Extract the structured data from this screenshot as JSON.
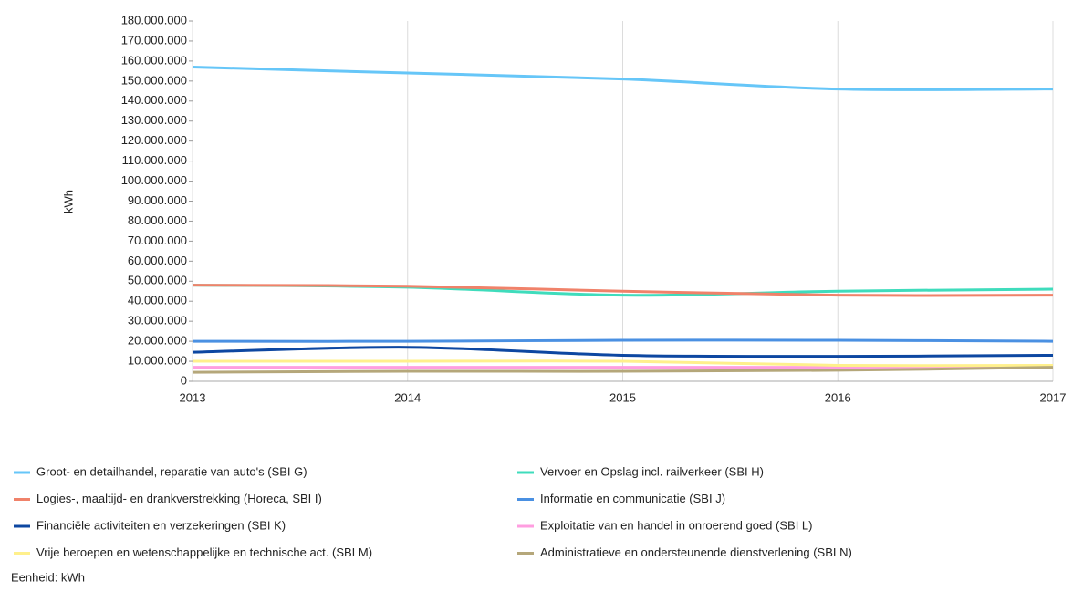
{
  "chart_data": {
    "type": "line",
    "y_label": "kWh",
    "footer": "Eenheid: kWh",
    "x": [
      2013,
      2014,
      2015,
      2016,
      2017
    ],
    "xlim": [
      2013,
      2017
    ],
    "xticks": [
      2013,
      2014,
      2015,
      2016,
      2017
    ],
    "ylim": [
      0,
      180000000
    ],
    "yticks": [
      0,
      {
        "value": 10000000,
        "label": "10.000.000"
      },
      {
        "value": 20000000,
        "label": "20.000.000"
      },
      {
        "value": 30000000,
        "label": "30.000.000"
      },
      {
        "value": 40000000,
        "label": "40.000.000"
      },
      {
        "value": 50000000,
        "label": "50.000.000"
      },
      {
        "value": 60000000,
        "label": "60.000.000"
      },
      {
        "value": 70000000,
        "label": "70.000.000"
      },
      {
        "value": 80000000,
        "label": "80.000.000"
      },
      {
        "value": 90000000,
        "label": "90.000.000"
      },
      {
        "value": 100000000,
        "label": "100.000.000"
      },
      {
        "value": 110000000,
        "label": "110.000.000"
      },
      {
        "value": 120000000,
        "label": "120.000.000"
      },
      {
        "value": 130000000,
        "label": "130.000.000"
      },
      {
        "value": 140000000,
        "label": "140.000.000"
      },
      {
        "value": 150000000,
        "label": "150.000.000"
      },
      {
        "value": 160000000,
        "label": "160.000.000"
      },
      {
        "value": 170000000,
        "label": "170.000.000"
      },
      {
        "value": 180000000,
        "label": "180.000.000"
      }
    ],
    "grid": true,
    "series": [
      {
        "name": "Groot- en detailhandel, reparatie van auto's (SBI G)",
        "color": "#66c6f8",
        "values": [
          157000000,
          154000000,
          151000000,
          146000000,
          146000000
        ]
      },
      {
        "name": "Vervoer en Opslag incl. railverkeer (SBI H)",
        "color": "#3fdcbc",
        "values": [
          48000000,
          47000000,
          43000000,
          45000000,
          46000000
        ]
      },
      {
        "name": "Logies-, maaltijd- en drankverstrekking (Horeca, SBI I)",
        "color": "#f0826a",
        "values": [
          48000000,
          47500000,
          45000000,
          43000000,
          43000000
        ]
      },
      {
        "name": "Informatie en communicatie (SBI J)",
        "color": "#4a90e2",
        "values": [
          20000000,
          20000000,
          20500000,
          20500000,
          20000000
        ]
      },
      {
        "name": "Financiële activiteiten en verzekeringen (SBI K)",
        "color": "#0d47a1",
        "values": [
          14500000,
          17000000,
          13000000,
          12500000,
          13000000
        ]
      },
      {
        "name": "Exploitatie van en handel in onroerend goed (SBI L)",
        "color": "#ff9ee0",
        "values": [
          7000000,
          7000000,
          7000000,
          7000000,
          7000000
        ]
      },
      {
        "name": "Vrije beroepen en wetenschappelijke en technische act. (SBI M)",
        "color": "#fff08c",
        "values": [
          10000000,
          10000000,
          10000000,
          8000000,
          8000000
        ]
      },
      {
        "name": "Administratieve en ondersteunende dienstverlening (SBI N)",
        "color": "#b5a77a",
        "values": [
          4500000,
          5000000,
          5000000,
          5500000,
          7000000
        ]
      }
    ]
  }
}
